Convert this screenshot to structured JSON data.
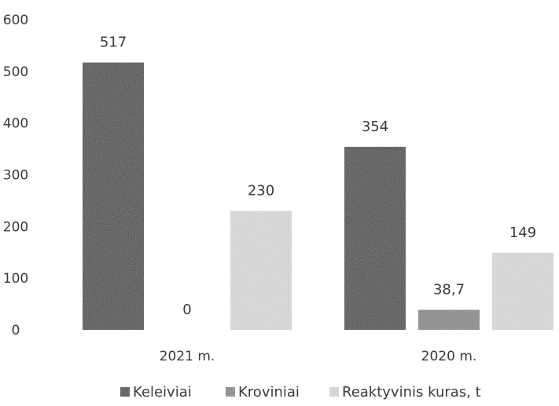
{
  "chart_data": {
    "type": "bar",
    "categories": [
      "2021 m.",
      "2020 m."
    ],
    "series": [
      {
        "name": "Keleiviai",
        "values": [
          517,
          354
        ],
        "labels": [
          "517",
          "354"
        ],
        "color": "#4a4a4a"
      },
      {
        "name": "Kroviniai",
        "values": [
          0,
          38.7
        ],
        "labels": [
          "0",
          "38,7"
        ],
        "color": "#8a8a8a"
      },
      {
        "name": "Reaktyvinis kuras, t",
        "values": [
          230,
          149
        ],
        "labels": [
          "230",
          "149"
        ],
        "color": "#dcdcdc"
      }
    ],
    "yticks": [
      "0",
      "100",
      "200",
      "300",
      "400",
      "500",
      "600"
    ],
    "ylim": [
      0,
      600
    ],
    "grid": false,
    "legend_position": "bottom"
  }
}
